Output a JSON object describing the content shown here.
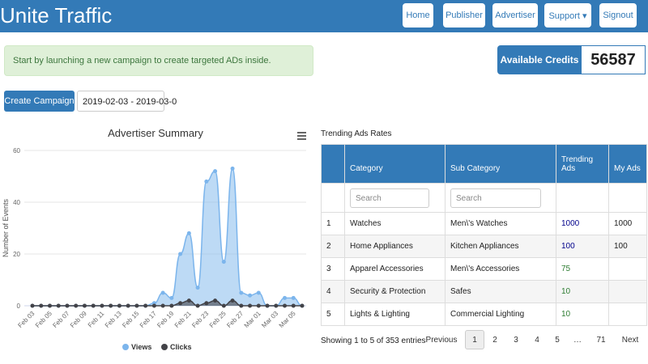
{
  "header": {
    "brand": "Unite Traffic",
    "nav": [
      "Home",
      "Publisher",
      "Advertiser",
      "Support ▾",
      "Signout"
    ]
  },
  "alert": "Start by launching a new campaign to create targeted ADs inside.",
  "credits": {
    "label": "Available Credits",
    "value": "56587"
  },
  "controls": {
    "button": "Create Campaign",
    "date_range": "2019-02-03 - 2019-03-0"
  },
  "chart_data": {
    "type": "area",
    "title": "Advertiser Summary",
    "y_label": "Number of Events",
    "categories": [
      "Feb 03",
      null,
      "Feb 05",
      null,
      "Feb 07",
      null,
      "Feb 09",
      null,
      "Feb 11",
      null,
      "Feb 13",
      null,
      "Feb 15",
      null,
      "Feb 17",
      null,
      "Feb 19",
      null,
      "Feb 21",
      null,
      "Feb 23",
      null,
      "Feb 25",
      null,
      "Feb 27",
      null,
      "Mar 01",
      null,
      "Mar 03",
      null,
      "Mar 05",
      null
    ],
    "series": [
      {
        "name": "Views",
        "color": "#7cb5ec",
        "values": [
          0,
          0,
          0,
          0,
          0,
          0,
          0,
          0,
          0,
          0,
          0,
          0,
          0,
          0,
          1,
          5,
          3,
          20,
          28,
          7,
          48,
          52,
          17,
          53,
          5,
          4,
          5,
          0,
          0,
          3,
          3,
          0
        ]
      },
      {
        "name": "Clicks",
        "color": "#434348",
        "values": [
          0,
          0,
          0,
          0,
          0,
          0,
          0,
          0,
          0,
          0,
          0,
          0,
          0,
          0,
          0,
          0,
          0,
          1,
          2,
          0,
          1,
          2,
          0,
          2,
          0,
          0,
          0,
          0,
          0,
          0,
          0,
          0
        ]
      }
    ],
    "ylim": [
      0,
      60
    ],
    "yticks": [
      0,
      20,
      40,
      60
    ],
    "grid": true
  },
  "table": {
    "title": "Trending Ads Rates",
    "columns": [
      "Category",
      "Sub Category",
      "Trending Ads",
      "My Ads"
    ],
    "search": [
      "Search",
      "Search"
    ],
    "rows": [
      [
        "1",
        "Watches",
        "Men\\'s Watches",
        "1000",
        "1000"
      ],
      [
        "2",
        "Home Appliances",
        "Kitchen Appliances",
        "100",
        "100"
      ],
      [
        "3",
        "Apparel Accessories",
        "Men\\'s Accessories",
        "75"
      ],
      [
        "4",
        "Security & Protection",
        "Safes",
        "10"
      ],
      [
        "5",
        "Lights & Lighting",
        "Commercial Lighting",
        "10"
      ]
    ],
    "info": "Showing 1 to 5 of 353 entries",
    "pagination": [
      "Previous",
      "1",
      "2",
      "3",
      "4",
      "5",
      "…",
      "71",
      "Next"
    ]
  }
}
